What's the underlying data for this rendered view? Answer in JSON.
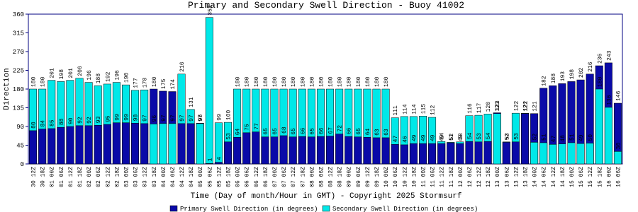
{
  "chart_data": {
    "type": "bar",
    "title": "Primary and Secondary Swell Direction - Buoy 41002",
    "x_label": "Time (Day of month/Hour in GMT) - Copyright 2025 Stormsurf",
    "y_label": "Direction",
    "categories": [
      "30 12Z",
      "30 18Z",
      "01 00Z",
      "01 06Z",
      "01 12Z",
      "01 18Z",
      "02 00Z",
      "02 06Z",
      "02 12Z",
      "02 18Z",
      "03 00Z",
      "03 06Z",
      "03 12Z",
      "03 18Z",
      "04 00Z",
      "04 06Z",
      "04 12Z",
      "04 18Z",
      "05 00Z",
      "05 06Z",
      "05 12Z",
      "05 18Z",
      "06 00Z",
      "06 06Z",
      "06 12Z",
      "06 18Z",
      "07 00Z",
      "07 06Z",
      "07 12Z",
      "07 18Z",
      "08 00Z",
      "08 06Z",
      "08 12Z",
      "08 18Z",
      "09 00Z",
      "09 06Z",
      "09 12Z",
      "09 18Z",
      "10 00Z",
      "10 06Z",
      "10 12Z",
      "10 18Z",
      "11 00Z",
      "11 06Z",
      "11 12Z",
      "11 18Z",
      "12 00Z",
      "12 06Z",
      "12 12Z",
      "12 18Z",
      "13 00Z",
      "13 06Z",
      "13 12Z",
      "13 18Z",
      "14 00Z",
      "14 06Z",
      "14 12Z",
      "14 18Z",
      "15 00Z",
      "15 06Z",
      "15 12Z",
      "15 18Z",
      "16 00Z",
      "16 06Z"
    ],
    "series": [
      {
        "name": "Primary Swell Direction (in degrees)",
        "color": "#0a0aa8",
        "values": [
          80,
          84,
          85,
          88,
          90,
          92,
          92,
          93,
          95,
          99,
          99,
          98,
          97,
          180,
          175,
          174,
          97,
          97,
          98,
          1,
          4,
          53,
          64,
          75,
          77,
          65,
          65,
          68,
          65,
          66,
          65,
          66,
          67,
          72,
          66,
          65,
          64,
          63,
          63,
          47,
          46,
          49,
          49,
          49,
          49,
          51,
          49,
          54,
          53,
          54,
          123,
          52,
          53,
          121,
          121,
          182,
          188,
          193,
          198,
          202,
          216,
          236,
          243,
          146
        ]
      },
      {
        "name": "Secondary Swell Direction (in degrees)",
        "color": "#00e8e8",
        "values": [
          180,
          180,
          201,
          198,
          201,
          206,
          196,
          188,
          192,
          196,
          190,
          177,
          178,
          96,
          97,
          97,
          216,
          131,
          97,
          352,
          99,
          100,
          180,
          180,
          180,
          180,
          180,
          180,
          180,
          180,
          180,
          180,
          180,
          180,
          180,
          180,
          180,
          180,
          180,
          111,
          114,
          114,
          115,
          112,
          54,
          52,
          53,
          116,
          117,
          120,
          121,
          53,
          122,
          122,
          52,
          51,
          47,
          48,
          51,
          49,
          50,
          180,
          136,
          30
        ]
      }
    ],
    "ylim": [
      0,
      360
    ],
    "yticks": [
      0,
      45,
      90,
      135,
      180,
      225,
      270,
      315,
      360
    ]
  }
}
